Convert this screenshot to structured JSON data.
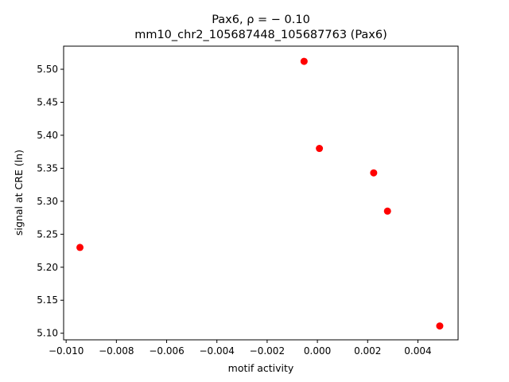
{
  "chart_data": {
    "type": "scatter",
    "title_line1": "Pax6, ρ = − 0.10",
    "title_line2": "mm10_chr2_105687448_105687763 (Pax6)",
    "xlabel": "motif activity",
    "ylabel": "signal at CRE (ln)",
    "xlim": [
      -0.0101,
      0.0056
    ],
    "ylim": [
      5.09,
      5.535
    ],
    "x_ticks": [
      -0.01,
      -0.008,
      -0.006,
      -0.004,
      -0.002,
      0.0,
      0.002,
      0.004
    ],
    "x_tick_labels": [
      "−0.010",
      "−0.008",
      "−0.006",
      "−0.004",
      "−0.002",
      "0.000",
      "0.002",
      "0.004"
    ],
    "y_ticks": [
      5.1,
      5.15,
      5.2,
      5.25,
      5.3,
      5.35,
      5.4,
      5.45,
      5.5
    ],
    "y_tick_labels": [
      "5.10",
      "5.15",
      "5.20",
      "5.25",
      "5.30",
      "5.35",
      "5.40",
      "5.45",
      "5.50"
    ],
    "grid": false,
    "marker_color": "#ff0000",
    "points": [
      {
        "x": -0.00945,
        "y": 5.23
      },
      {
        "x": -0.00053,
        "y": 5.512
      },
      {
        "x": 8e-05,
        "y": 5.38
      },
      {
        "x": 0.00224,
        "y": 5.343
      },
      {
        "x": 0.00279,
        "y": 5.285
      },
      {
        "x": 0.00487,
        "y": 5.111
      }
    ]
  }
}
